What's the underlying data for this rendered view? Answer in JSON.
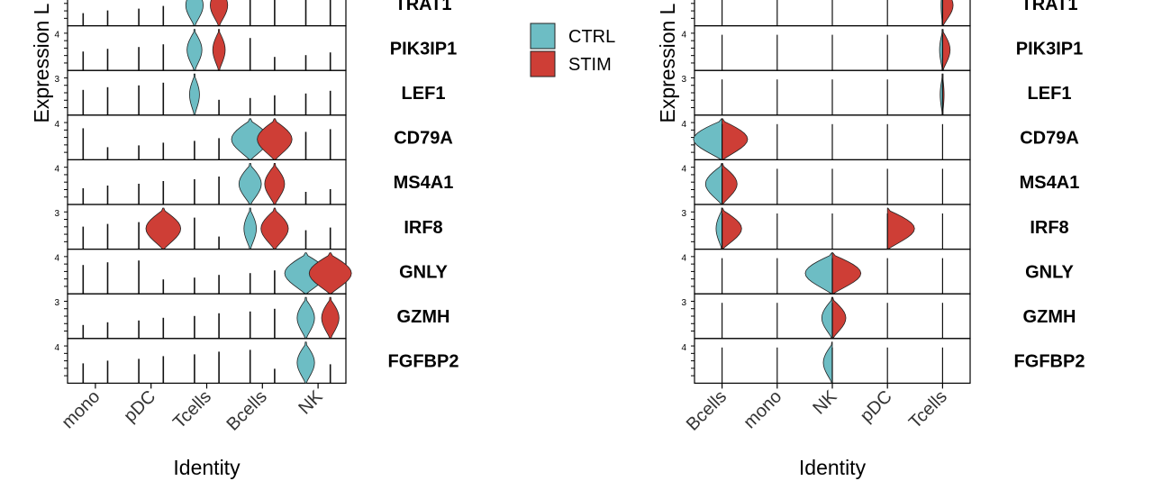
{
  "legend": {
    "items": [
      {
        "label": "CTRL",
        "color": "#6DBDC4"
      },
      {
        "label": "STIM",
        "color": "#CE3E36"
      }
    ]
  },
  "colors": {
    "ctrl": "#6DBDC4",
    "stim": "#CE3E36",
    "axis": "#000000"
  },
  "chart_data": [
    {
      "type": "violin",
      "title": "",
      "xlabel": "Identity",
      "ylabel": "Expression L",
      "categories": [
        "mono",
        "pDC",
        "Tcells",
        "Bcells",
        "NK"
      ],
      "split": false,
      "genes": [
        "TRAT1",
        "PIK3IP1",
        "LEF1",
        "CD79A",
        "MS4A1",
        "IRF8",
        "GNLY",
        "GZMH",
        "FGFBP2"
      ],
      "y_tick_labels": [
        "",
        "4",
        "3",
        "4",
        "4",
        "3",
        "4",
        "3",
        "4"
      ],
      "series": [
        {
          "name": "CTRL",
          "violin_width": [
            [
              0.05,
              0.05,
              0.35,
              0.05,
              0.05
            ],
            [
              0.05,
              0.05,
              0.3,
              0.05,
              0.05
            ],
            [
              0.05,
              0.05,
              0.2,
              0.05,
              0.05
            ],
            [
              0.05,
              0.05,
              0.05,
              0.75,
              0.05
            ],
            [
              0.05,
              0.05,
              0.05,
              0.45,
              0.05
            ],
            [
              0.05,
              0.05,
              0.05,
              0.25,
              0.05
            ],
            [
              0.05,
              0.05,
              0.05,
              0.05,
              0.85
            ],
            [
              0.05,
              0.05,
              0.05,
              0.05,
              0.35
            ],
            [
              0.05,
              0.05,
              0.05,
              0.05,
              0.35
            ]
          ]
        },
        {
          "name": "STIM",
          "violin_width": [
            [
              0.05,
              0.05,
              0.35,
              0.05,
              0.05
            ],
            [
              0.05,
              0.05,
              0.25,
              0.05,
              0.05
            ],
            [
              0.05,
              0.05,
              0.05,
              0.05,
              0.05
            ],
            [
              0.05,
              0.05,
              0.05,
              0.7,
              0.05
            ],
            [
              0.05,
              0.05,
              0.05,
              0.4,
              0.05
            ],
            [
              0.05,
              0.7,
              0.05,
              0.55,
              0.05
            ],
            [
              0.05,
              0.05,
              0.05,
              0.05,
              0.85
            ],
            [
              0.05,
              0.05,
              0.05,
              0.05,
              0.35
            ],
            [
              0.05,
              0.05,
              0.05,
              0.05,
              0.05
            ]
          ]
        }
      ]
    },
    {
      "type": "violin",
      "title": "",
      "xlabel": "Identity",
      "ylabel": "Expression L",
      "categories": [
        "Bcells",
        "mono",
        "NK",
        "pDC",
        "Tcells"
      ],
      "split": true,
      "genes": [
        "TRAT1",
        "PIK3IP1",
        "LEF1",
        "CD79A",
        "MS4A1",
        "IRF8",
        "GNLY",
        "GZMH",
        "FGFBP2"
      ],
      "y_tick_labels": [
        "",
        "4",
        "3",
        "4",
        "4",
        "3",
        "4",
        "3",
        "4"
      ],
      "series": [
        {
          "name": "CTRL",
          "violin_width": [
            [
              0.0,
              0.0,
              0.0,
              0.0,
              0.05
            ],
            [
              0.0,
              0.0,
              0.0,
              0.0,
              0.1
            ],
            [
              0.0,
              0.0,
              0.0,
              0.0,
              0.08
            ],
            [
              0.95,
              0.0,
              0.0,
              0.0,
              0.0
            ],
            [
              0.55,
              0.0,
              0.0,
              0.0,
              0.0
            ],
            [
              0.2,
              0.0,
              0.0,
              0.0,
              0.0
            ],
            [
              0.0,
              0.0,
              0.9,
              0.0,
              0.0
            ],
            [
              0.0,
              0.0,
              0.35,
              0.0,
              0.0
            ],
            [
              0.0,
              0.0,
              0.3,
              0.0,
              0.0
            ]
          ]
        },
        {
          "name": "STIM",
          "violin_width": [
            [
              0.0,
              0.0,
              0.0,
              0.0,
              0.35
            ],
            [
              0.0,
              0.0,
              0.0,
              0.0,
              0.25
            ],
            [
              0.0,
              0.0,
              0.0,
              0.0,
              0.05
            ],
            [
              0.85,
              0.0,
              0.0,
              0.0,
              0.0
            ],
            [
              0.5,
              0.0,
              0.0,
              0.0,
              0.0
            ],
            [
              0.65,
              0.0,
              0.0,
              0.9,
              0.0
            ],
            [
              0.0,
              0.0,
              0.95,
              0.0,
              0.0
            ],
            [
              0.0,
              0.0,
              0.45,
              0.0,
              0.0
            ],
            [
              0.0,
              0.0,
              0.0,
              0.0,
              0.0
            ]
          ]
        }
      ]
    }
  ]
}
